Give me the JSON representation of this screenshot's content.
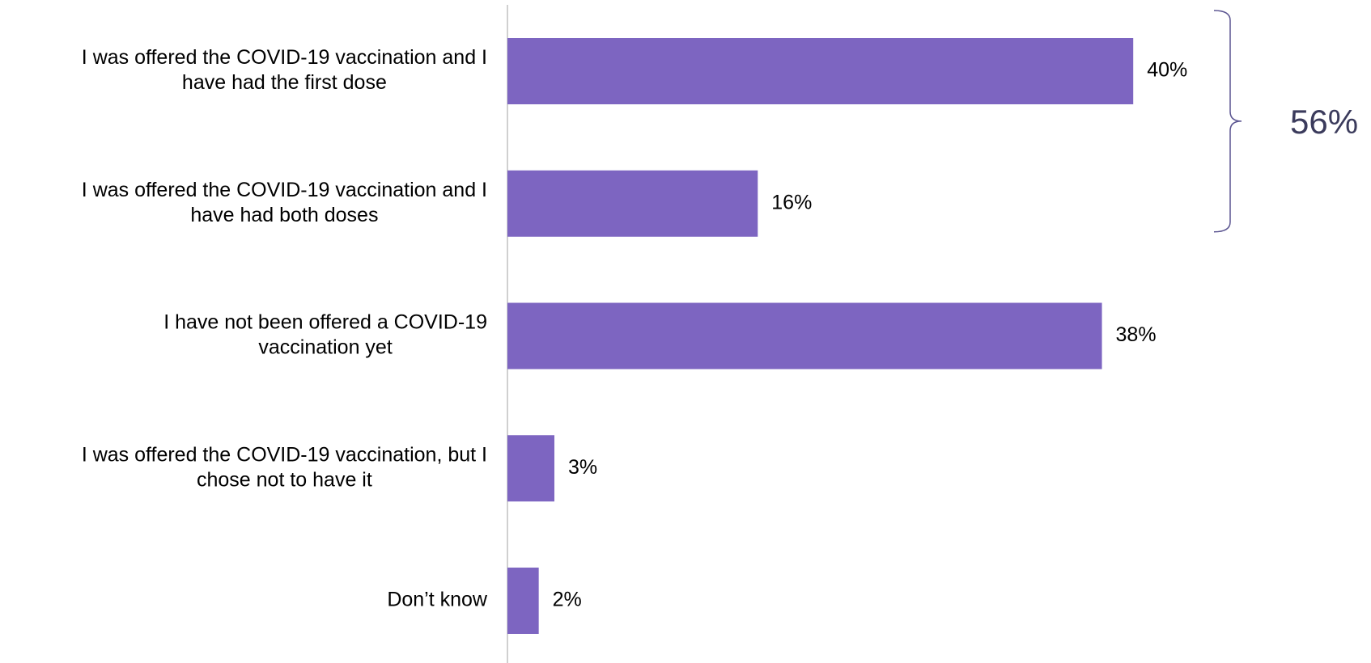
{
  "chart_data": {
    "type": "bar",
    "orientation": "horizontal",
    "categories": [
      [
        "I was offered the COVID-19 vaccination and I",
        "have had the first dose"
      ],
      [
        "I was offered the COVID-19 vaccination and I",
        "have had both doses"
      ],
      [
        "I have not been offered a COVID-19",
        "vaccination yet"
      ],
      [
        "I was offered the COVID-19 vaccination, but I",
        "chose not to have it"
      ],
      [
        "Don’t know"
      ]
    ],
    "values": [
      40,
      16,
      38,
      3,
      2
    ],
    "value_labels": [
      "40%",
      "16%",
      "38%",
      "3%",
      "2%"
    ],
    "xlim": [
      0,
      50
    ],
    "grid": false,
    "legend": "none",
    "bar_color": "#7d65c1",
    "axis_color": "#d0d0d0",
    "bracket": {
      "covers_categories": [
        0,
        1
      ],
      "total_label": "56%",
      "color": "#5a5490",
      "text_color": "#3b3b5c"
    }
  }
}
